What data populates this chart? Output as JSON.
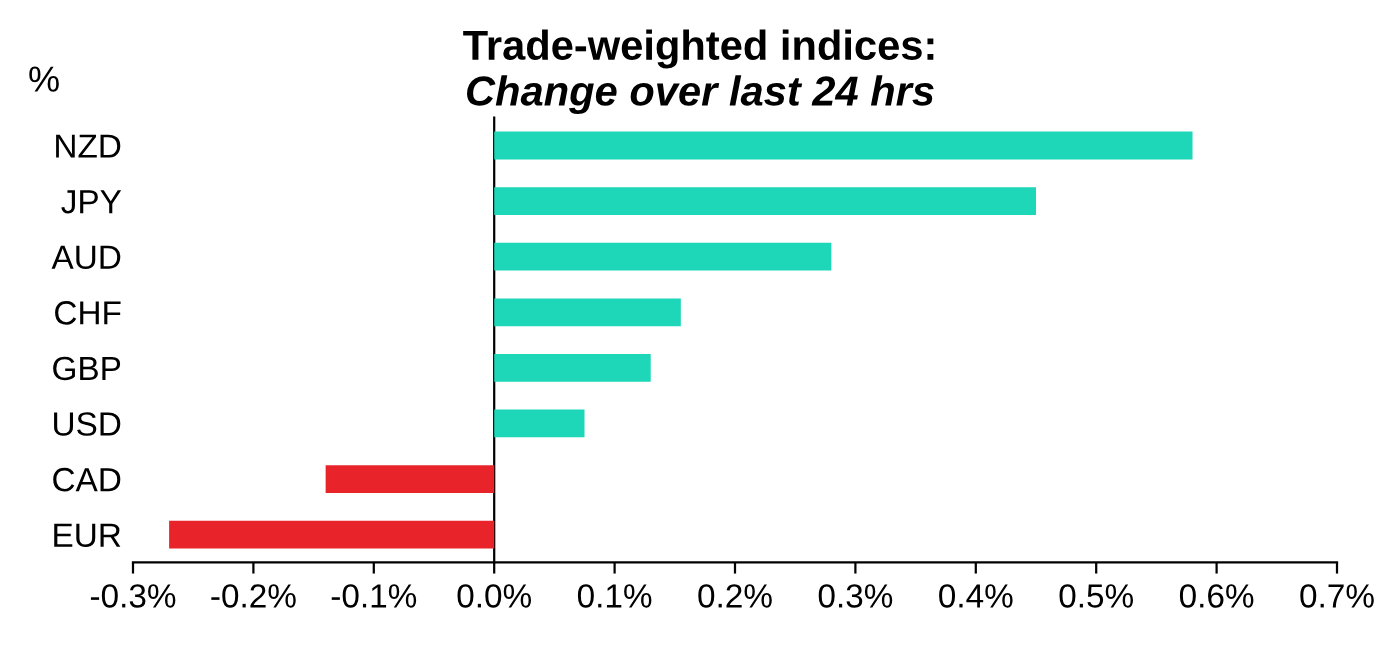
{
  "chart_data": {
    "type": "bar",
    "orientation": "horizontal",
    "title": "Trade-weighted indices:",
    "subtitle": "Change over last 24 hrs",
    "ylabel": "%",
    "categories": [
      "NZD",
      "JPY",
      "AUD",
      "CHF",
      "GBP",
      "USD",
      "CAD",
      "EUR"
    ],
    "values": [
      0.58,
      0.45,
      0.28,
      0.155,
      0.13,
      0.075,
      -0.14,
      -0.27
    ],
    "colors": [
      "#1ed6b8",
      "#1ed6b8",
      "#1ed6b8",
      "#1ed6b8",
      "#1ed6b8",
      "#1ed6b8",
      "#e8232a",
      "#e8232a"
    ],
    "xlim": [
      -0.3,
      0.7
    ],
    "xticks": [
      {
        "value": -0.3,
        "label": "-0.3%"
      },
      {
        "value": -0.2,
        "label": "-0.2%"
      },
      {
        "value": -0.1,
        "label": "-0.1%"
      },
      {
        "value": 0.0,
        "label": "0.0%"
      },
      {
        "value": 0.1,
        "label": "0.1%"
      },
      {
        "value": 0.2,
        "label": "0.2%"
      },
      {
        "value": 0.3,
        "label": "0.3%"
      },
      {
        "value": 0.4,
        "label": "0.4%"
      },
      {
        "value": 0.5,
        "label": "0.5%"
      },
      {
        "value": 0.6,
        "label": "0.6%"
      },
      {
        "value": 0.7,
        "label": "0.7%"
      }
    ],
    "legend": false
  }
}
